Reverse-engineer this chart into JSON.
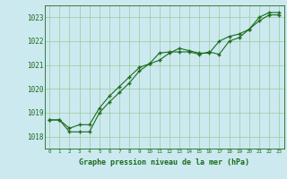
{
  "xlabel": "Graphe pression niveau de la mer (hPa)",
  "bg_color": "#cce9f0",
  "grid_color": "#99cc99",
  "line_color": "#1a6b1a",
  "marker": "+",
  "xlim": [
    -0.5,
    23.5
  ],
  "ylim": [
    1017.5,
    1023.5
  ],
  "yticks": [
    1018,
    1019,
    1020,
    1021,
    1022,
    1023
  ],
  "xticks": [
    0,
    1,
    2,
    3,
    4,
    5,
    6,
    7,
    8,
    9,
    10,
    11,
    12,
    13,
    14,
    15,
    16,
    17,
    18,
    19,
    20,
    21,
    22,
    23
  ],
  "series1_x": [
    0,
    1,
    2,
    3,
    4,
    5,
    6,
    7,
    8,
    9,
    10,
    11,
    12,
    13,
    14,
    15,
    16,
    17,
    18,
    19,
    20,
    21,
    22,
    23
  ],
  "series1_y": [
    1018.7,
    1018.7,
    1018.35,
    1018.5,
    1018.5,
    1019.2,
    1019.7,
    1020.1,
    1020.5,
    1020.9,
    1021.05,
    1021.5,
    1021.55,
    1021.55,
    1021.55,
    1021.45,
    1021.55,
    1021.45,
    1022.0,
    1022.15,
    1022.5,
    1022.85,
    1023.1,
    1023.1
  ],
  "series2_x": [
    0,
    1,
    2,
    3,
    4,
    5,
    6,
    7,
    8,
    9,
    10,
    11,
    12,
    13,
    14,
    15,
    16,
    17,
    18,
    19,
    20,
    21,
    22,
    23
  ],
  "series2_y": [
    1018.7,
    1018.7,
    1018.2,
    1018.2,
    1018.2,
    1019.0,
    1019.45,
    1019.85,
    1020.25,
    1020.75,
    1021.05,
    1021.2,
    1021.5,
    1021.7,
    1021.6,
    1021.5,
    1021.5,
    1022.0,
    1022.2,
    1022.3,
    1022.5,
    1023.0,
    1023.2,
    1023.2
  ]
}
